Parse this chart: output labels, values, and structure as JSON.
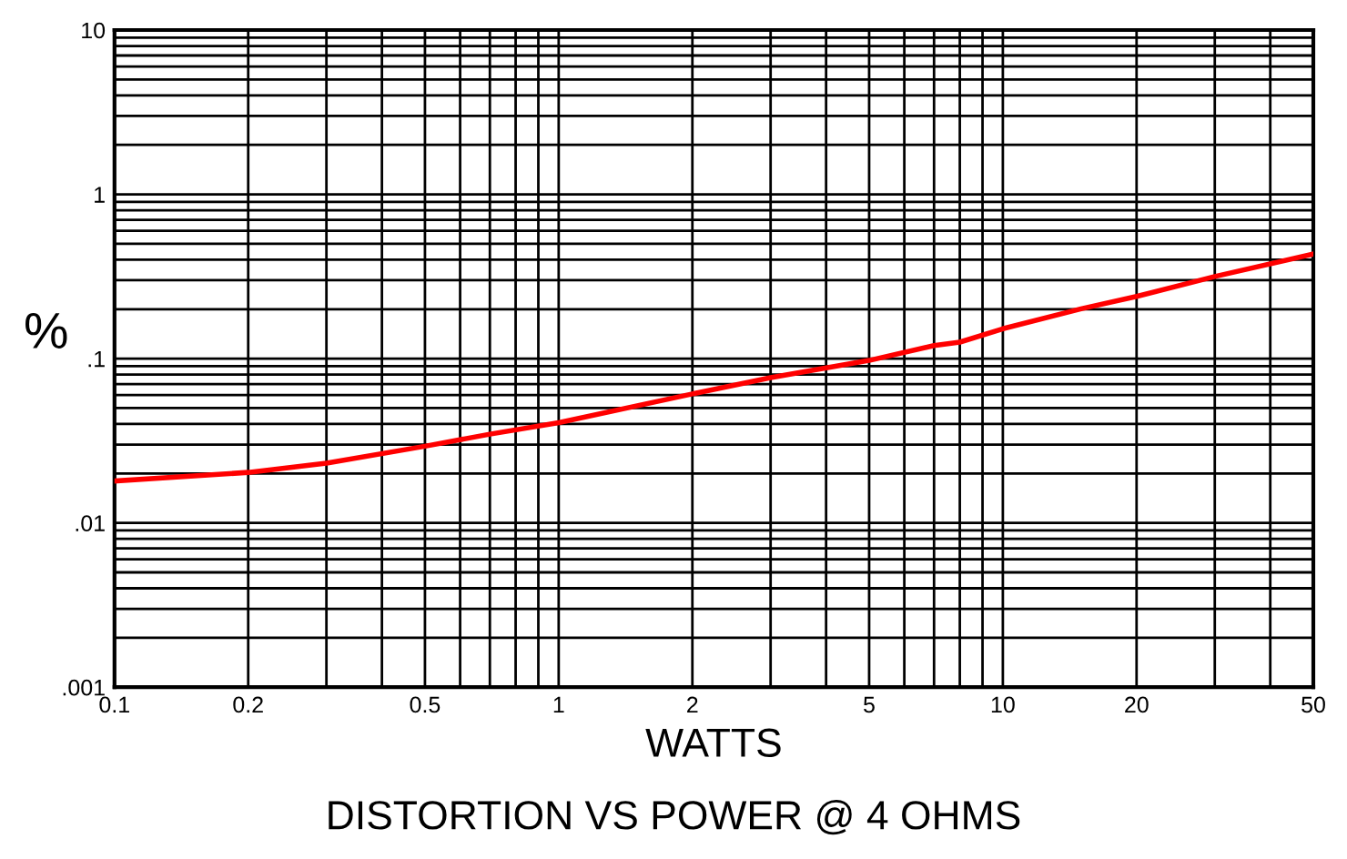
{
  "chart_data": {
    "type": "line",
    "title": "DISTORTION VS POWER @ 4 OHMS",
    "xlabel": "WATTS",
    "ylabel": "%",
    "x": [
      0.1,
      0.2,
      0.3,
      0.5,
      0.7,
      1,
      2,
      3,
      5,
      7,
      8,
      10,
      15,
      20,
      30,
      50
    ],
    "series": [
      {
        "color": "#ff0000",
        "values": [
          0.018,
          0.0203,
          0.0231,
          0.0293,
          0.0347,
          0.0408,
          0.061,
          0.0767,
          0.0975,
          0.12,
          0.126,
          0.152,
          0.201,
          0.239,
          0.316,
          0.433
        ]
      }
    ],
    "log": "xy",
    "xlim": [
      0.1,
      50
    ],
    "ylim": [
      0.001,
      10
    ],
    "xticks": [
      0.1,
      0.2,
      0.5,
      1,
      2,
      5,
      10,
      20,
      50
    ],
    "yticks": [
      {
        "value": 0.001,
        "label": ".001"
      },
      {
        "value": 0.01,
        "label": ".01"
      },
      {
        "value": 0.1,
        "label": ".1"
      },
      {
        "value": 1,
        "label": "1"
      },
      {
        "value": 10,
        "label": "10"
      }
    ],
    "grid": true,
    "marker": "none",
    "line_style": "solid",
    "legend": false
  }
}
